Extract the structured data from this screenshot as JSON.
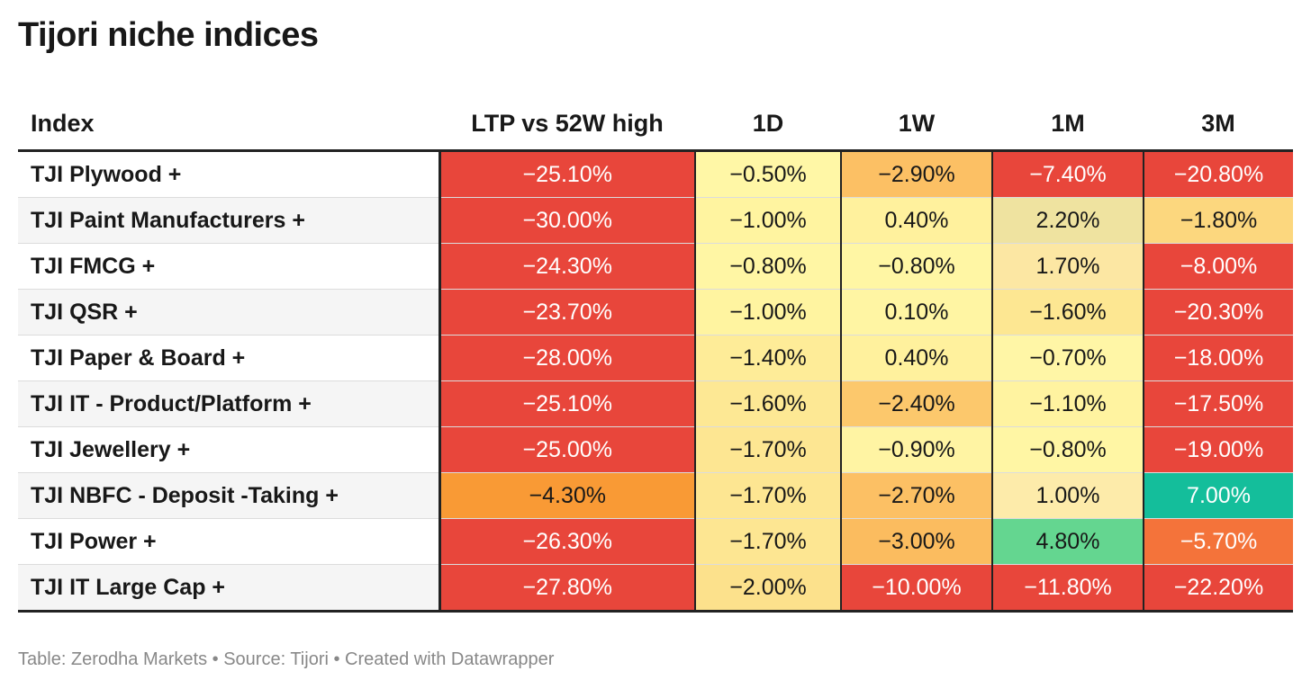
{
  "title": "Tijori niche indices",
  "footer": "Table: Zerodha Markets • Source: Tijori • Created with Datawrapper",
  "chart_data": {
    "type": "table",
    "title": "Tijori niche indices",
    "columns": [
      "Index",
      "LTP vs 52W high",
      "1D",
      "1W",
      "1M",
      "3M"
    ],
    "rows": [
      {
        "name": "TJI Plywood +",
        "values": [
          "−25.10%",
          "−0.50%",
          "−2.90%",
          "−7.40%",
          "−20.80%"
        ],
        "colors": [
          "#e8463b",
          "#fff7a6",
          "#fcc064",
          "#e8463b",
          "#e8463b"
        ]
      },
      {
        "name": "TJI Paint Manufacturers +",
        "values": [
          "−30.00%",
          "−1.00%",
          "0.40%",
          "2.20%",
          "−1.80%"
        ],
        "colors": [
          "#e8463b",
          "#fff4a0",
          "#fff19d",
          "#efe3a0",
          "#fcd77e"
        ]
      },
      {
        "name": "TJI FMCG +",
        "values": [
          "−24.30%",
          "−0.80%",
          "−0.80%",
          "1.70%",
          "−8.00%"
        ],
        "colors": [
          "#e8463b",
          "#fff6a4",
          "#fff6a4",
          "#fce7a3",
          "#e8463b"
        ]
      },
      {
        "name": "TJI QSR +",
        "values": [
          "−23.70%",
          "−1.00%",
          "0.10%",
          "−1.60%",
          "−20.30%"
        ],
        "colors": [
          "#e8463b",
          "#fff4a0",
          "#fff5a3",
          "#fde792",
          "#e8463b"
        ]
      },
      {
        "name": "TJI Paper & Board +",
        "values": [
          "−28.00%",
          "−1.40%",
          "0.40%",
          "−0.70%",
          "−18.00%"
        ],
        "colors": [
          "#e8463b",
          "#feec98",
          "#fff19d",
          "#fff6a6",
          "#e8463b"
        ]
      },
      {
        "name": "TJI IT - Product/Platform +",
        "values": [
          "−25.10%",
          "−1.60%",
          "−2.40%",
          "−1.10%",
          "−17.50%"
        ],
        "colors": [
          "#e8463b",
          "#fde894",
          "#fcc86c",
          "#fff3a0",
          "#e8463b"
        ]
      },
      {
        "name": "TJI Jewellery +",
        "values": [
          "−25.00%",
          "−1.70%",
          "−0.90%",
          "−0.80%",
          "−19.00%"
        ],
        "colors": [
          "#e8463b",
          "#fde692",
          "#fff4a3",
          "#fff6a4",
          "#e8463b"
        ]
      },
      {
        "name": "TJI NBFC - Deposit -Taking +",
        "values": [
          "−4.30%",
          "−1.70%",
          "−2.70%",
          "1.00%",
          "7.00%"
        ],
        "colors": [
          "#f99a35",
          "#fde692",
          "#fcc064",
          "#fdebaa",
          "#14be9b"
        ]
      },
      {
        "name": "TJI Power +",
        "values": [
          "−26.30%",
          "−1.70%",
          "−3.00%",
          "4.80%",
          "−5.70%"
        ],
        "colors": [
          "#e8463b",
          "#fde692",
          "#fbbc5f",
          "#64d690",
          "#f4733a"
        ]
      },
      {
        "name": "TJI IT Large Cap +",
        "values": [
          "−27.80%",
          "−2.00%",
          "−10.00%",
          "−11.80%",
          "−22.20%"
        ],
        "colors": [
          "#e8463b",
          "#fce18c",
          "#e8463b",
          "#e8463b",
          "#e8463b"
        ]
      }
    ],
    "colors": {
      "header_rule": "#222222",
      "text_light": "#ffffff",
      "text_dark": "#181818"
    }
  }
}
